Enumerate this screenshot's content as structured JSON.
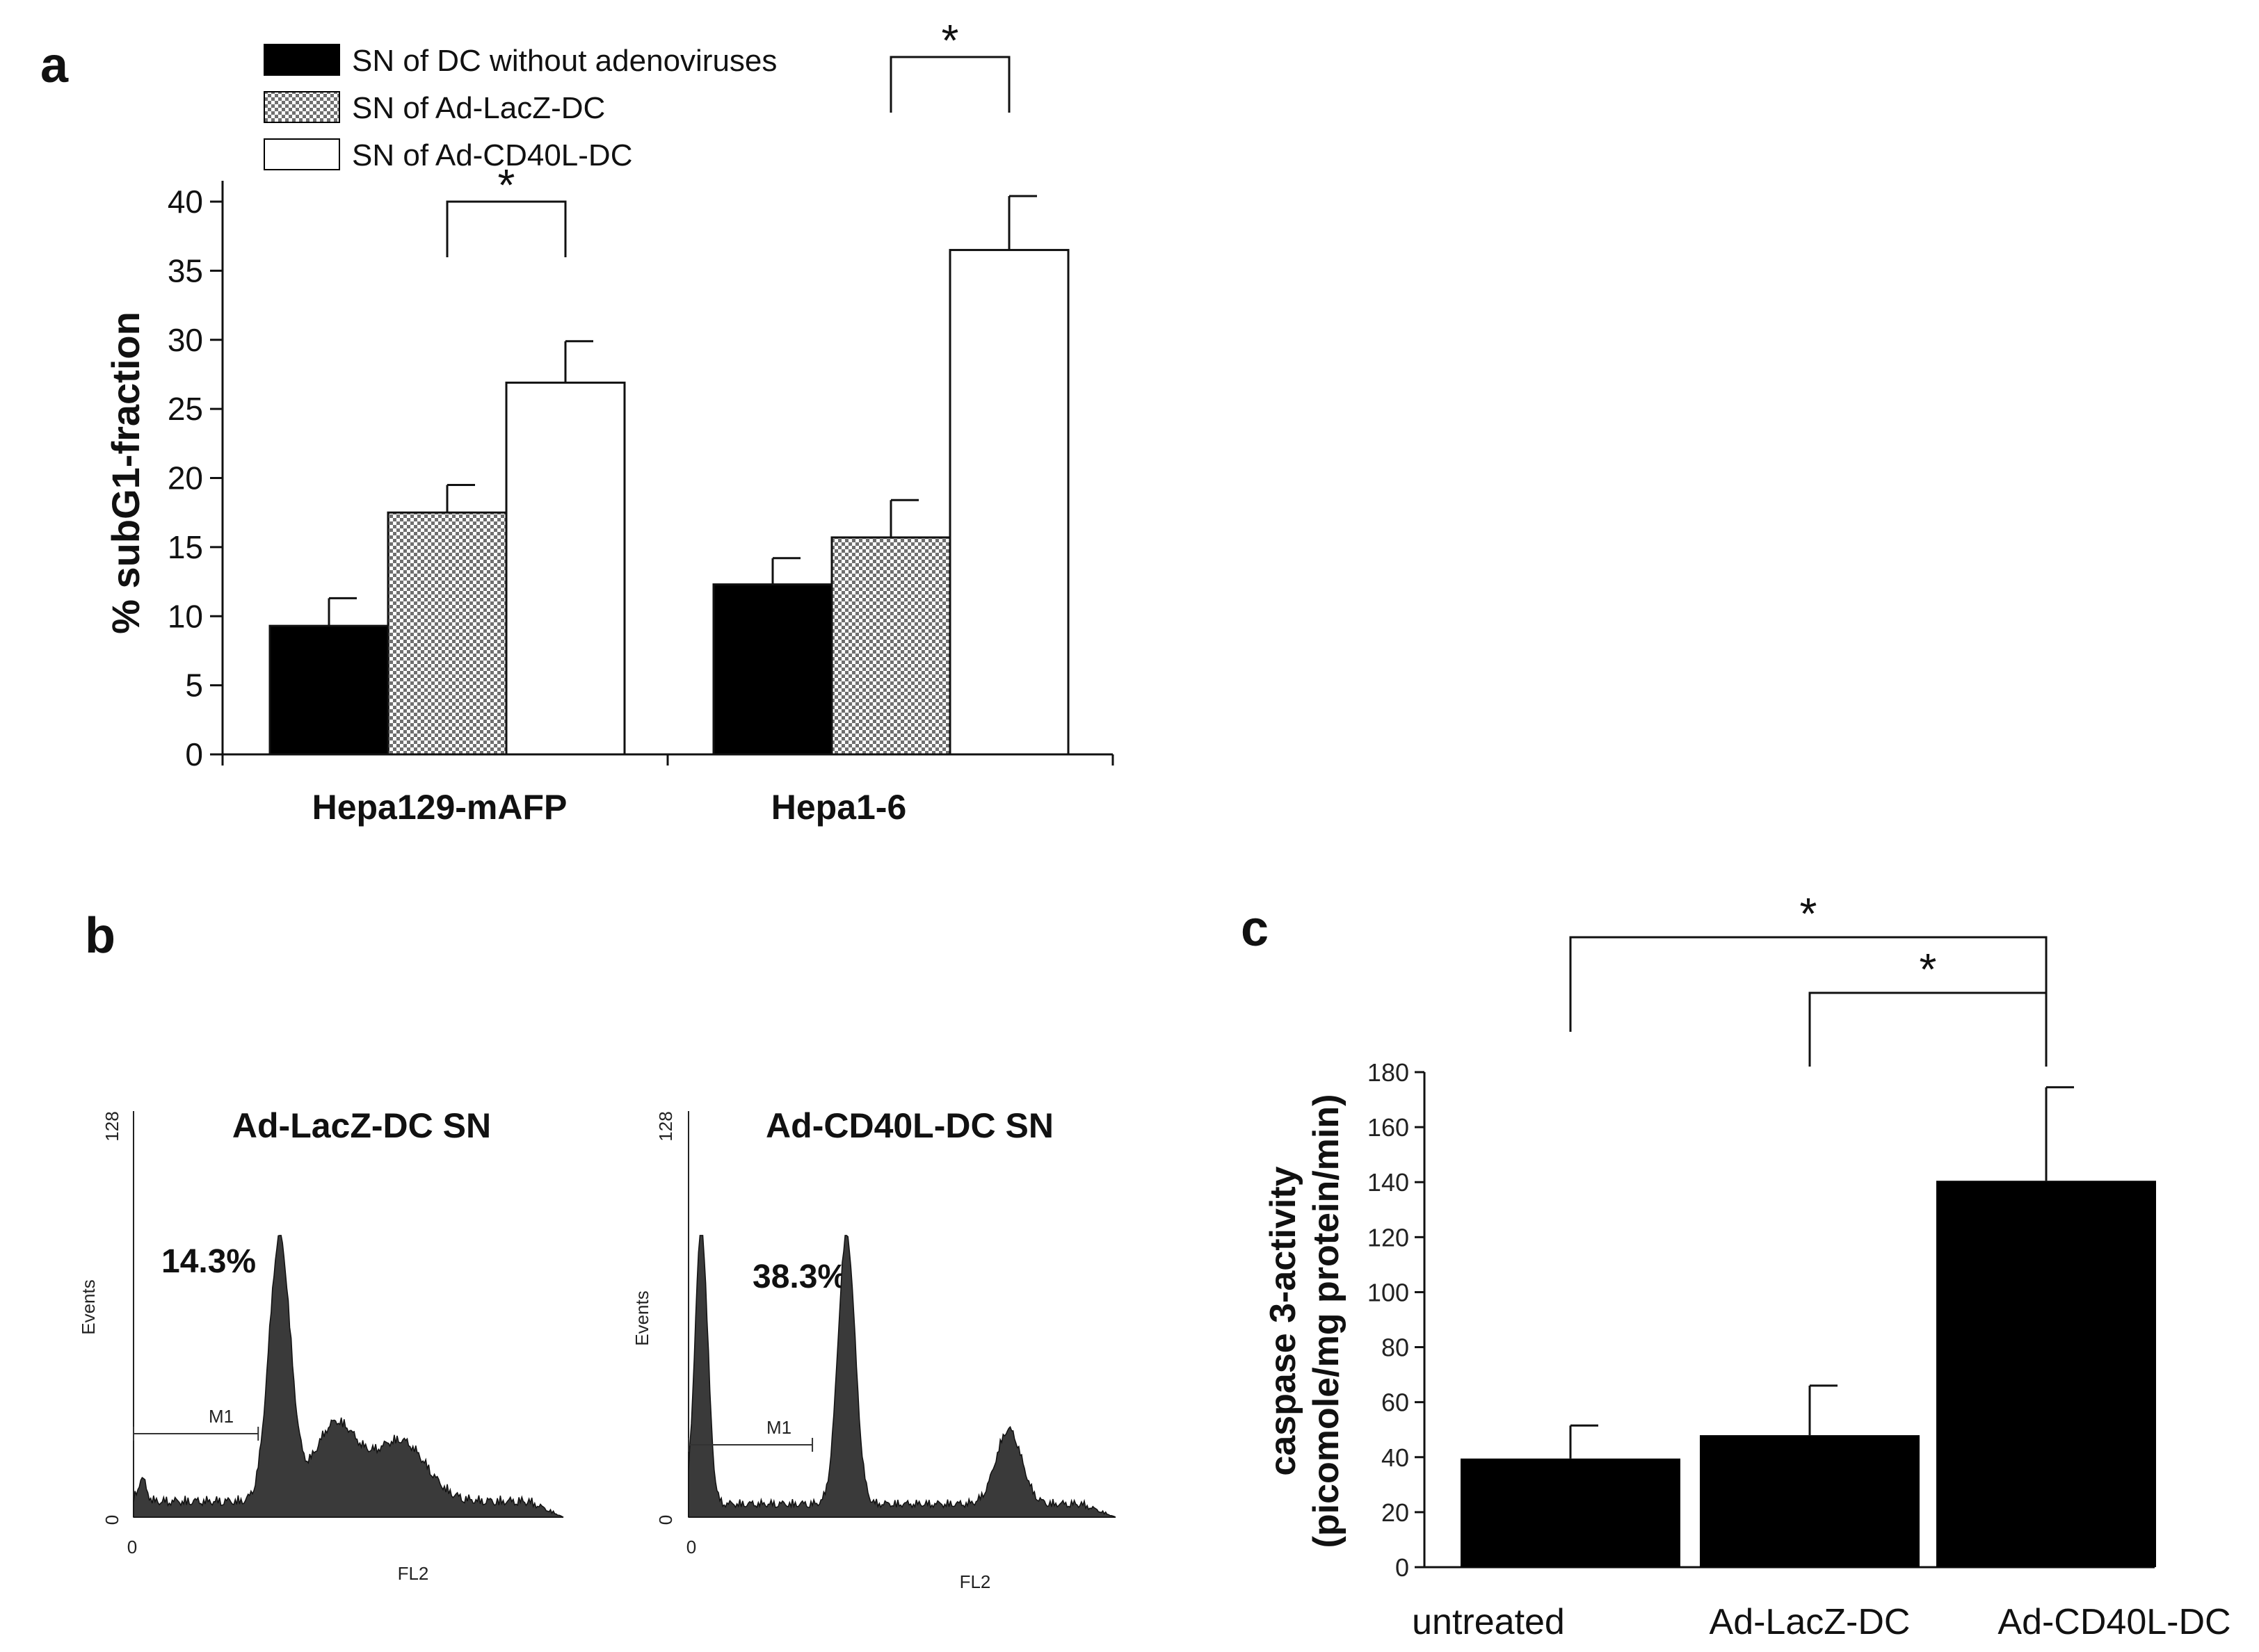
{
  "panels": {
    "a": "a",
    "b": "b",
    "c": "c"
  },
  "chart_data": [
    {
      "panel": "a",
      "type": "bar",
      "ylabel": "% subG1-fraction",
      "ylim": [
        0,
        40
      ],
      "yticks": [
        0,
        5,
        10,
        15,
        20,
        25,
        30,
        35,
        40
      ],
      "categories": [
        "Hepa129-mAFP",
        "Hepa1-6"
      ],
      "series": [
        {
          "name": "SN of DC without adenoviruses",
          "fill": "solid",
          "color": "#000000",
          "values": [
            9.3,
            12.3
          ],
          "errors": [
            2.0,
            1.9
          ]
        },
        {
          "name": "SN of Ad-LacZ-DC",
          "fill": "checker",
          "color": "#7a7a7a",
          "values": [
            17.5,
            15.7
          ],
          "errors": [
            2.0,
            2.7
          ]
        },
        {
          "name": "SN of Ad-CD40L-DC",
          "fill": "open",
          "color": "#ffffff",
          "values": [
            26.9,
            36.5
          ],
          "errors": [
            3.0,
            3.9
          ]
        }
      ],
      "significance": [
        {
          "label": "*",
          "category": "Hepa129-mAFP",
          "between": [
            "SN of Ad-LacZ-DC",
            "SN of Ad-CD40L-DC"
          ]
        },
        {
          "label": "*",
          "category": "Hepa1-6",
          "between": [
            "SN of Ad-LacZ-DC",
            "SN of Ad-CD40L-DC"
          ]
        }
      ]
    },
    {
      "panel": "b",
      "type": "histogram",
      "plots": [
        {
          "title": "Ad-LacZ-DC  SN",
          "percent": "14.3%",
          "ytick_max": "128",
          "ytick_min": "0",
          "xtick_min": "0",
          "ylabel": "Events",
          "xlabel": "FL2",
          "marker": "M1",
          "peaks": [
            {
              "pos": 0.02,
              "height": 0.08,
              "width": 0.01
            },
            {
              "pos": 0.34,
              "height": 0.95,
              "width": 0.025
            },
            {
              "pos": 0.47,
              "height": 0.28,
              "width": 0.05
            },
            {
              "pos": 0.62,
              "height": 0.22,
              "width": 0.06
            }
          ],
          "baseline": 0.06,
          "gate": [
            0,
            0.29
          ]
        },
        {
          "title": "Ad-CD40L-DC SN",
          "percent": "38.3%",
          "ytick_max": "128",
          "ytick_min": "0",
          "xtick_min": "0",
          "ylabel": "Events",
          "xlabel": "FL2",
          "marker": "M1",
          "peaks": [
            {
              "pos": 0.03,
              "height": 1.0,
              "width": 0.015
            },
            {
              "pos": 0.37,
              "height": 0.98,
              "width": 0.02
            },
            {
              "pos": 0.75,
              "height": 0.27,
              "width": 0.03
            }
          ],
          "baseline": 0.05,
          "gate": [
            0,
            0.29
          ]
        }
      ]
    },
    {
      "panel": "c",
      "type": "bar",
      "ylabel_line1": "caspase 3-activity",
      "ylabel_line2": "(picomole/mg protein/min)",
      "ylim": [
        0,
        180
      ],
      "yticks": [
        0,
        20,
        40,
        60,
        80,
        100,
        120,
        140,
        160,
        180
      ],
      "categories": [
        "untreated",
        "Ad-LacZ-DC",
        "Ad-CD40L-DC"
      ],
      "values": [
        39.5,
        48,
        140.5
      ],
      "errors": [
        12,
        18,
        34
      ],
      "color": "#000000",
      "significance": [
        {
          "label": "*",
          "between": [
            "untreated",
            "Ad-CD40L-DC"
          ]
        },
        {
          "label": "*",
          "between": [
            "Ad-LacZ-DC",
            "Ad-CD40L-DC"
          ]
        }
      ]
    }
  ]
}
